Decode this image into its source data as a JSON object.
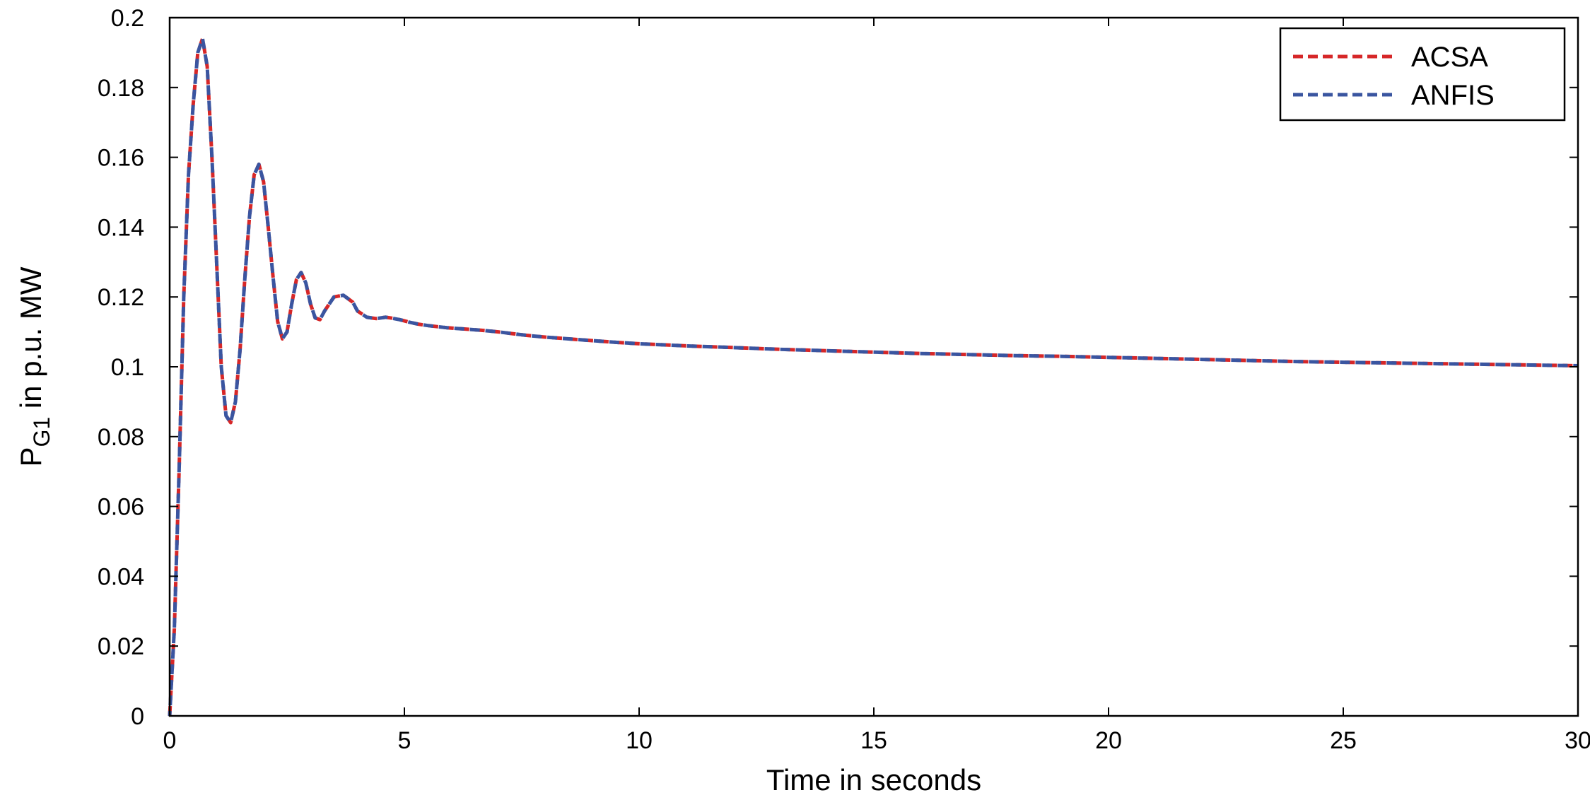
{
  "chart_data": {
    "type": "line",
    "title": "",
    "xlabel": "Time in seconds",
    "ylabel": {
      "main": "P",
      "subscript": "G1",
      "rest": " in p.u. MW"
    },
    "xlim": [
      0,
      30
    ],
    "ylim": [
      0,
      0.2
    ],
    "xticks": [
      0,
      5,
      10,
      15,
      20,
      25,
      30
    ],
    "xtick_labels": [
      "0",
      "5",
      "10",
      "15",
      "20",
      "25",
      "30"
    ],
    "yticks": [
      0,
      0.02,
      0.04,
      0.06,
      0.08,
      0.1,
      0.12,
      0.14,
      0.16,
      0.18,
      0.2
    ],
    "ytick_labels": [
      "0",
      "0.02",
      "0.04",
      "0.06",
      "0.08",
      "0.1",
      "0.12",
      "0.14",
      "0.16",
      "0.18",
      "0.2"
    ],
    "grid": false,
    "legend_position": "top-right",
    "series": [
      {
        "name": "ACSA",
        "color": "#d62728",
        "dash": "dashed",
        "x": [
          0,
          0.1,
          0.2,
          0.3,
          0.4,
          0.5,
          0.6,
          0.7,
          0.8,
          0.9,
          1.0,
          1.1,
          1.2,
          1.3,
          1.4,
          1.5,
          1.6,
          1.7,
          1.8,
          1.9,
          2.0,
          2.1,
          2.2,
          2.3,
          2.4,
          2.5,
          2.6,
          2.7,
          2.8,
          2.9,
          3.0,
          3.1,
          3.2,
          3.3,
          3.5,
          3.7,
          3.9,
          4.0,
          4.2,
          4.4,
          4.6,
          4.7,
          4.9,
          5.1,
          5.3,
          5.5,
          5.7,
          5.9,
          6.1,
          6.3,
          6.6,
          7.0,
          7.3,
          7.6,
          8.0,
          8.5,
          9.0,
          9.5,
          10,
          11,
          12,
          13,
          14,
          15,
          16,
          17,
          18,
          19,
          20,
          21,
          22,
          23,
          24,
          25,
          26,
          27,
          28,
          29,
          30
        ],
        "y": [
          0,
          0.025,
          0.07,
          0.12,
          0.155,
          0.175,
          0.19,
          0.194,
          0.186,
          0.16,
          0.13,
          0.1,
          0.086,
          0.084,
          0.09,
          0.105,
          0.125,
          0.143,
          0.155,
          0.158,
          0.153,
          0.14,
          0.126,
          0.113,
          0.108,
          0.11,
          0.118,
          0.125,
          0.127,
          0.124,
          0.118,
          0.114,
          0.1135,
          0.116,
          0.12,
          0.1205,
          0.1185,
          0.116,
          0.1142,
          0.1138,
          0.1142,
          0.114,
          0.1135,
          0.1128,
          0.1122,
          0.1118,
          0.1115,
          0.1112,
          0.111,
          0.1108,
          0.1105,
          0.11,
          0.1095,
          0.109,
          0.1085,
          0.108,
          0.1075,
          0.107,
          0.1066,
          0.106,
          0.1055,
          0.105,
          0.1046,
          0.1042,
          0.1038,
          0.1035,
          0.1032,
          0.103,
          0.1027,
          0.1024,
          0.1021,
          0.1018,
          0.1015,
          0.1013,
          0.1011,
          0.1009,
          0.1007,
          0.1005,
          0.1003
        ]
      },
      {
        "name": "ANFIS",
        "color": "#3a55a0",
        "dash": "dashed",
        "x": [
          0,
          0.1,
          0.2,
          0.3,
          0.4,
          0.5,
          0.6,
          0.7,
          0.8,
          0.9,
          1.0,
          1.1,
          1.2,
          1.3,
          1.4,
          1.5,
          1.6,
          1.7,
          1.8,
          1.9,
          2.0,
          2.1,
          2.2,
          2.3,
          2.4,
          2.5,
          2.6,
          2.7,
          2.8,
          2.9,
          3.0,
          3.1,
          3.2,
          3.3,
          3.5,
          3.7,
          3.9,
          4.0,
          4.2,
          4.4,
          4.6,
          4.7,
          4.9,
          5.1,
          5.3,
          5.5,
          5.7,
          5.9,
          6.1,
          6.3,
          6.6,
          7.0,
          7.3,
          7.6,
          8.0,
          8.5,
          9.0,
          9.5,
          10,
          11,
          12,
          13,
          14,
          15,
          16,
          17,
          18,
          19,
          20,
          21,
          22,
          23,
          24,
          25,
          26,
          27,
          28,
          29,
          30
        ],
        "y": [
          0,
          0.025,
          0.07,
          0.12,
          0.155,
          0.175,
          0.19,
          0.194,
          0.186,
          0.16,
          0.13,
          0.1,
          0.086,
          0.084,
          0.09,
          0.105,
          0.125,
          0.143,
          0.155,
          0.158,
          0.153,
          0.14,
          0.126,
          0.113,
          0.108,
          0.11,
          0.118,
          0.125,
          0.127,
          0.124,
          0.118,
          0.114,
          0.1135,
          0.116,
          0.12,
          0.1205,
          0.1185,
          0.116,
          0.1142,
          0.1138,
          0.1142,
          0.114,
          0.1135,
          0.1128,
          0.1122,
          0.1118,
          0.1115,
          0.1112,
          0.111,
          0.1108,
          0.1105,
          0.11,
          0.1095,
          0.109,
          0.1085,
          0.108,
          0.1075,
          0.107,
          0.1066,
          0.106,
          0.1055,
          0.105,
          0.1046,
          0.1042,
          0.1038,
          0.1035,
          0.1032,
          0.103,
          0.1027,
          0.1024,
          0.1021,
          0.1018,
          0.1015,
          0.1013,
          0.1011,
          0.1009,
          0.1007,
          0.1005,
          0.1003
        ]
      }
    ]
  }
}
